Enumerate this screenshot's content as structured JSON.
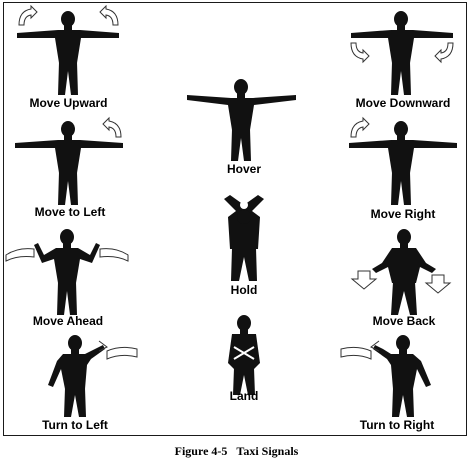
{
  "signals": [
    {
      "id": "move-upward",
      "label": "Move Upward"
    },
    {
      "id": "move-downward",
      "label": "Move Downward"
    },
    {
      "id": "hover",
      "label": "Hover"
    },
    {
      "id": "move-to-left",
      "label": "Move to Left"
    },
    {
      "id": "move-right",
      "label": "Move Right"
    },
    {
      "id": "hold",
      "label": "Hold"
    },
    {
      "id": "move-ahead",
      "label": "Move Ahead"
    },
    {
      "id": "move-back",
      "label": "Move Back"
    },
    {
      "id": "land",
      "label": "Land"
    },
    {
      "id": "turn-to-left",
      "label": "Turn to Left"
    },
    {
      "id": "turn-to-right",
      "label": "Turn to Right"
    }
  ],
  "caption": {
    "number": "Figure 4-5",
    "title": "Taxi Signals"
  },
  "colors": {
    "figure": "#111111",
    "arrow_fill": "#ffffff",
    "arrow_stroke": "#333333"
  }
}
